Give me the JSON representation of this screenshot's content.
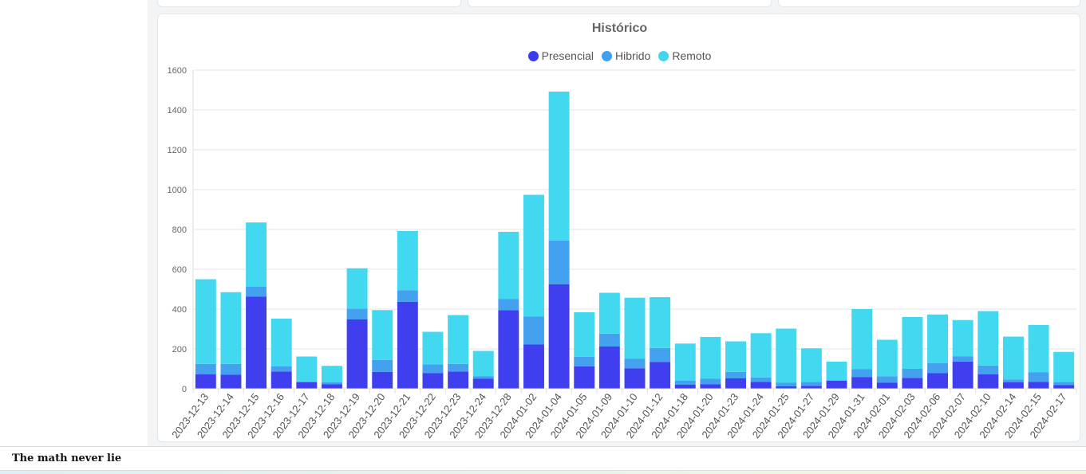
{
  "footer": {
    "text": "The math never lie"
  },
  "chart_data": {
    "type": "bar",
    "stacked": true,
    "title": "Histórico",
    "legend_position": "top",
    "grid": true,
    "ylim": [
      0,
      1600
    ],
    "yticks": [
      0,
      200,
      400,
      600,
      800,
      1000,
      1200,
      1400,
      1600
    ],
    "categories": [
      "2023-12-13",
      "2023-12-14",
      "2023-12-15",
      "2023-12-16",
      "2023-12-17",
      "2023-12-18",
      "2023-12-19",
      "2023-12-20",
      "2023-12-21",
      "2023-12-22",
      "2023-12-23",
      "2023-12-24",
      "2023-12-28",
      "2024-01-02",
      "2024-01-04",
      "2024-01-05",
      "2024-01-09",
      "2024-01-10",
      "2024-01-12",
      "2024-01-18",
      "2024-01-20",
      "2024-01-23",
      "2024-01-24",
      "2024-01-25",
      "2024-01-27",
      "2024-01-29",
      "2024-01-31",
      "2024-02-01",
      "2024-02-03",
      "2024-02-06",
      "2024-02-07",
      "2024-02-10",
      "2024-02-14",
      "2024-02-15",
      "2024-02-17"
    ],
    "series": [
      {
        "name": "Presencial",
        "color": "#3b3bf0",
        "values": [
          72,
          70,
          462,
          87,
          32,
          22,
          348,
          85,
          437,
          78,
          87,
          50,
          395,
          222,
          525,
          113,
          212,
          103,
          135,
          20,
          22,
          52,
          35,
          12,
          15,
          40,
          58,
          30,
          55,
          78,
          137,
          72,
          32,
          35,
          18
        ]
      },
      {
        "name": "Hibrido",
        "color": "#3f9ff0",
        "values": [
          53,
          55,
          50,
          25,
          5,
          10,
          55,
          60,
          58,
          45,
          38,
          12,
          55,
          140,
          220,
          48,
          65,
          47,
          70,
          20,
          28,
          33,
          22,
          18,
          20,
          3,
          40,
          33,
          45,
          50,
          25,
          45,
          15,
          47,
          17
        ]
      },
      {
        "name": "Remoto",
        "color": "#3ed7f0",
        "values": [
          425,
          360,
          323,
          240,
          125,
          83,
          202,
          250,
          297,
          163,
          245,
          128,
          338,
          612,
          747,
          223,
          205,
          307,
          255,
          187,
          210,
          153,
          222,
          272,
          168,
          93,
          302,
          183,
          260,
          245,
          183,
          273,
          215,
          238,
          150
        ]
      }
    ]
  }
}
